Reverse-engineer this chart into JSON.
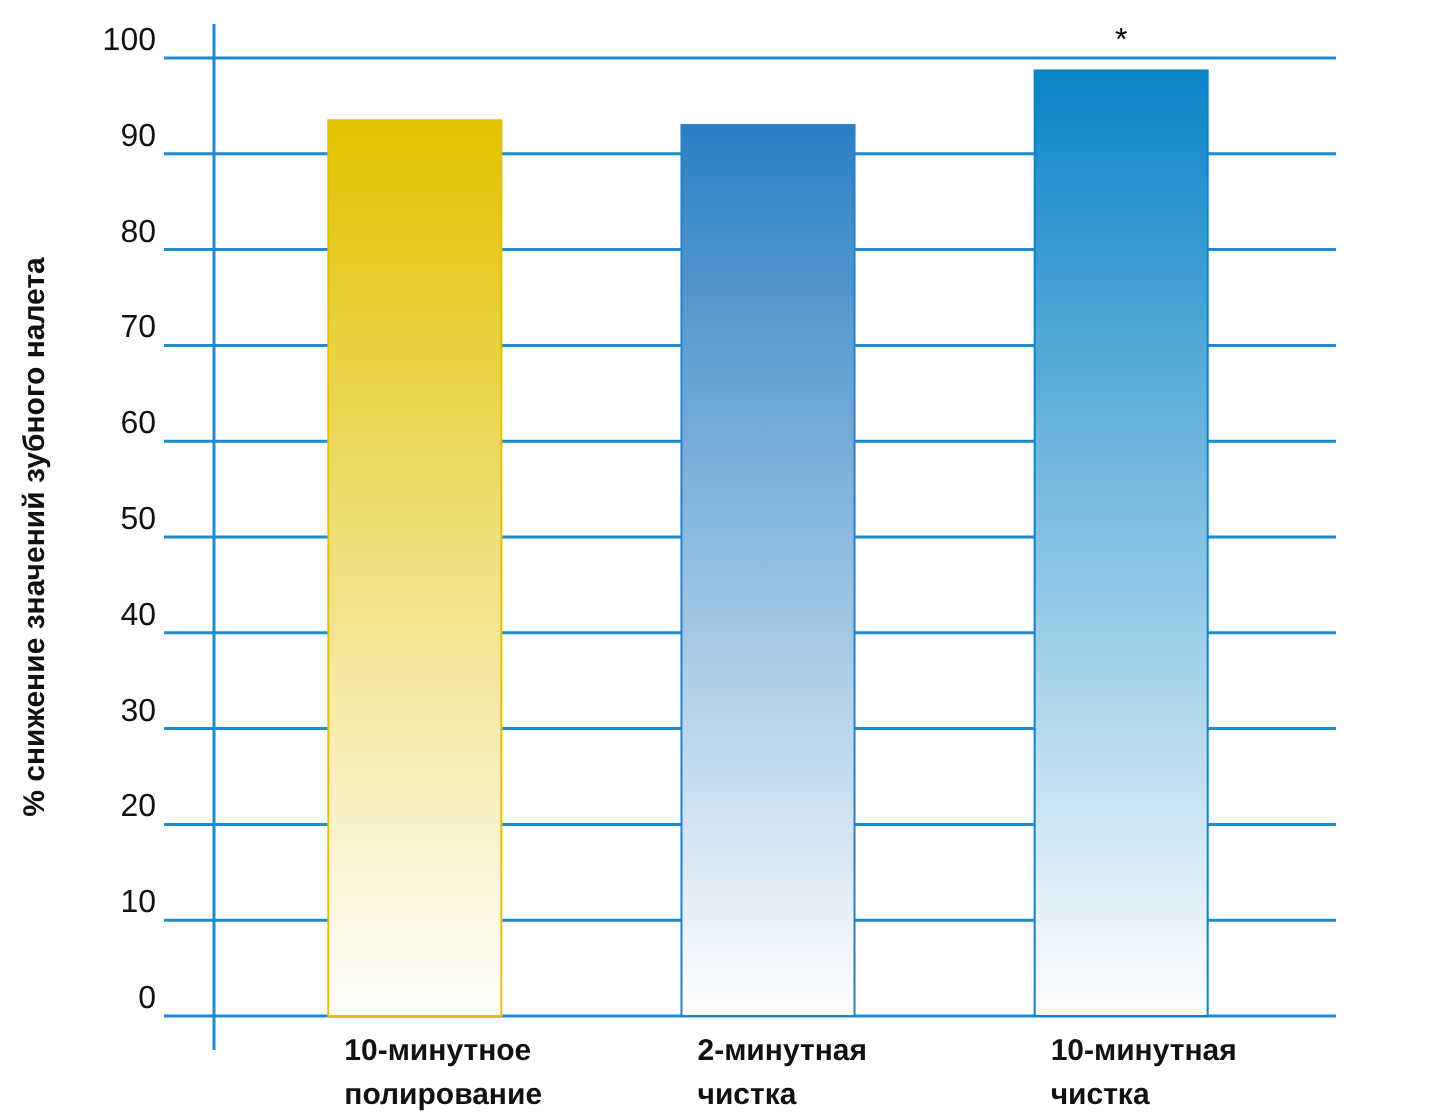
{
  "chart_data": {
    "type": "bar",
    "ylabel": "%  снижение значений зубного налета",
    "categories": [
      "10-минутное полирование",
      "2-минутная чистка",
      "10-минутная чистка"
    ],
    "values": [
      93.5,
      93,
      98.7
    ],
    "colors": [
      "#e2c200",
      "#2a7fc4",
      "#0a84c8"
    ],
    "ylim": [
      0,
      100
    ],
    "yticks": [
      0,
      10,
      20,
      30,
      40,
      50,
      60,
      70,
      80,
      90,
      100
    ],
    "grid": "y",
    "annotations": [
      {
        "text": "*",
        "x": "10-минутная чистка",
        "y": 98.7
      }
    ]
  }
}
